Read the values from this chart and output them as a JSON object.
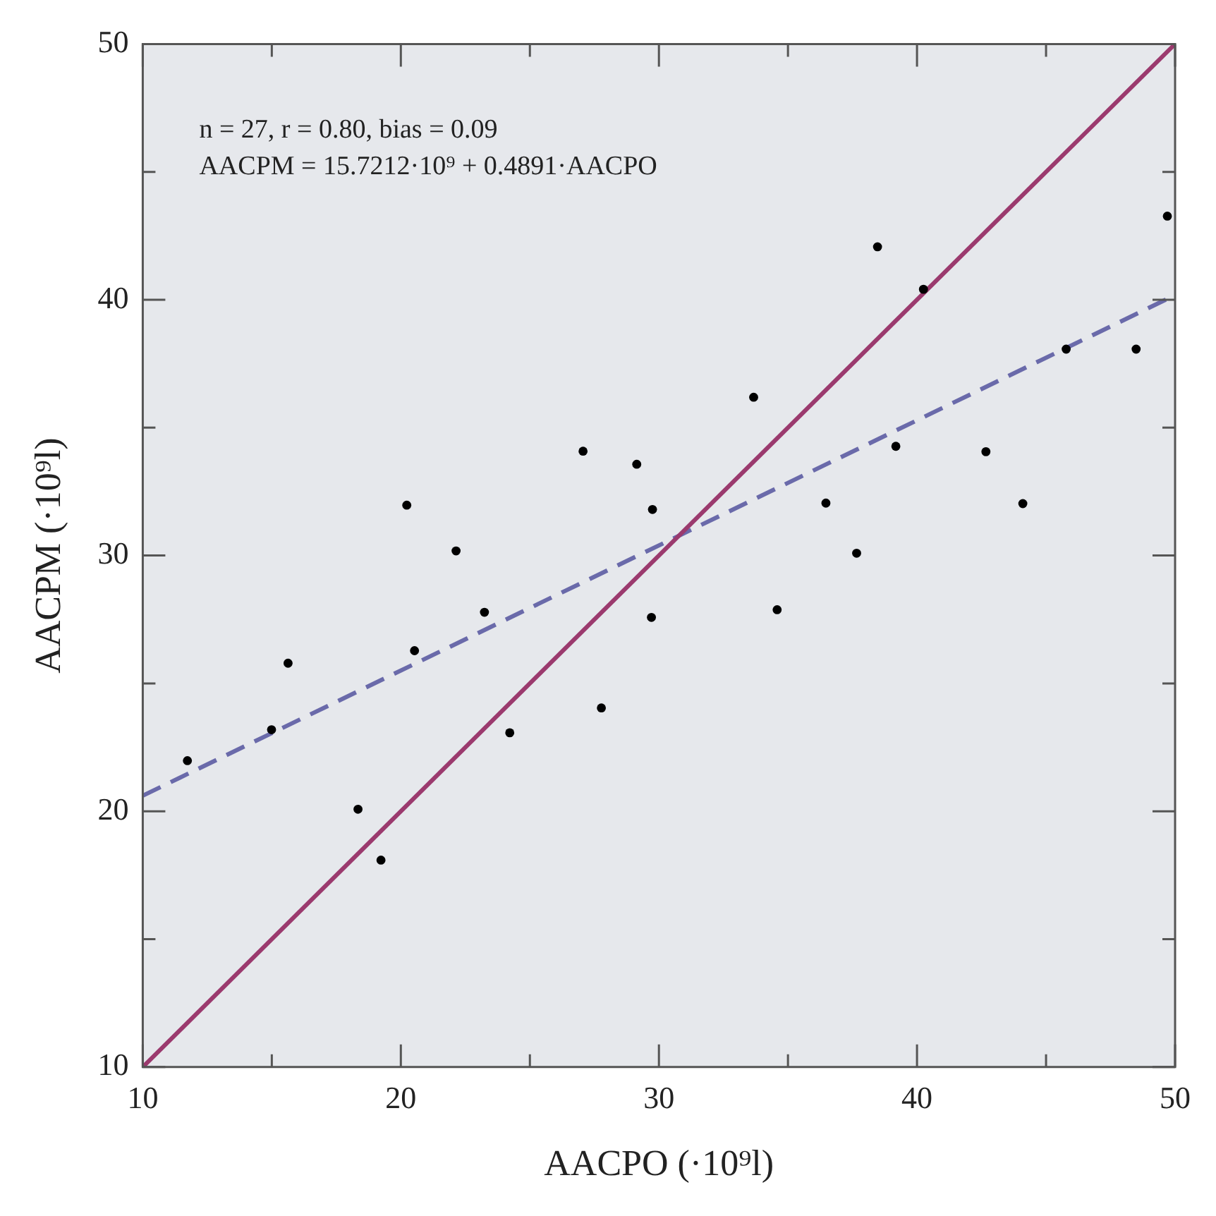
{
  "chart_data": {
    "type": "scatter",
    "xlabel": "AACPO (·10⁹l)",
    "ylabel": "AACPM (·10⁹l)",
    "annotations": [
      "n = 27, r = 0.80, bias = 0.09",
      "AACPM = 15.7212·10⁹ + 0.4891·AACPO"
    ],
    "series": [
      {
        "color": "#000000",
        "marker": "circle",
        "x": [
          11.73,
          14.99,
          15.63,
          18.34,
          19.23,
          20.23,
          20.53,
          22.14,
          23.24,
          24.22,
          27.06,
          27.77,
          29.14,
          29.71,
          29.75,
          33.67,
          34.58,
          36.47,
          37.66,
          38.47,
          39.18,
          40.25,
          42.67,
          44.1,
          45.78,
          48.49,
          49.7
        ],
        "values": [
          21.98,
          23.19,
          25.79,
          20.08,
          18.09,
          31.97,
          26.28,
          30.18,
          27.78,
          23.07,
          34.08,
          24.04,
          33.57,
          27.58,
          31.8,
          36.19,
          27.88,
          32.05,
          30.09,
          42.07,
          34.27,
          40.41,
          34.06,
          32.03,
          38.07,
          38.07,
          43.27
        ]
      },
      {
        "type": "line",
        "color": "#9b3a6e",
        "line_style": "solid",
        "marker": "none",
        "x": [
          10,
          50
        ],
        "values": [
          10,
          50
        ]
      },
      {
        "type": "line",
        "color": "#6a6aaa",
        "line_style": "dashed",
        "marker": "none",
        "x": [
          10,
          50
        ],
        "values": [
          20.61,
          40.18
        ]
      }
    ],
    "xlim": [
      10,
      50
    ],
    "ylim": [
      10,
      50
    ],
    "xticks": [
      10,
      {
        "value": 15,
        "label": null
      },
      20,
      {
        "value": 25,
        "label": null
      },
      30,
      {
        "value": 35,
        "label": null
      },
      40,
      {
        "value": 45,
        "label": null
      },
      50
    ],
    "yticks": [
      10,
      {
        "value": 15,
        "label": null
      },
      20,
      {
        "value": 25,
        "label": null
      },
      30,
      {
        "value": 35,
        "label": null
      },
      40,
      {
        "value": 45,
        "label": null
      },
      50
    ],
    "grid": false,
    "legend": false
  }
}
